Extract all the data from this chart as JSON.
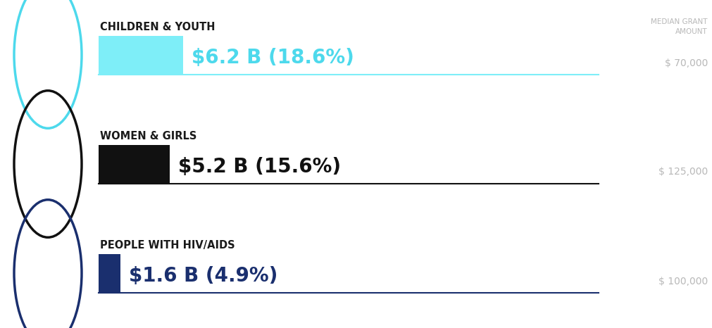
{
  "categories": [
    "CHILDREN & YOUTH",
    "WOMEN & GIRLS",
    "PEOPLE WITH HIV/AIDS"
  ],
  "values": [
    6.2,
    5.2,
    1.6
  ],
  "labels": [
    "$6.2 B (18.6%)",
    "$5.2 B (15.6%)",
    "$1.6 B (4.9%)"
  ],
  "bar_colors": [
    "#7EEEF8",
    "#111111",
    "#1a2f6e"
  ],
  "label_colors": [
    "#4DD9EC",
    "#111111",
    "#1a2f6e"
  ],
  "line_colors": [
    "#7EEEF8",
    "#111111",
    "#1a2f6e"
  ],
  "circle_colors": [
    "#4DD9EC",
    "#111111",
    "#1a2f6e"
  ],
  "median_amounts": [
    "$ 70,000",
    "$ 125,000",
    "$ 100,000"
  ],
  "median_label": "MEDIAN GRANT\nAMOUNT",
  "max_value": 33.3,
  "background_color": "#ffffff"
}
